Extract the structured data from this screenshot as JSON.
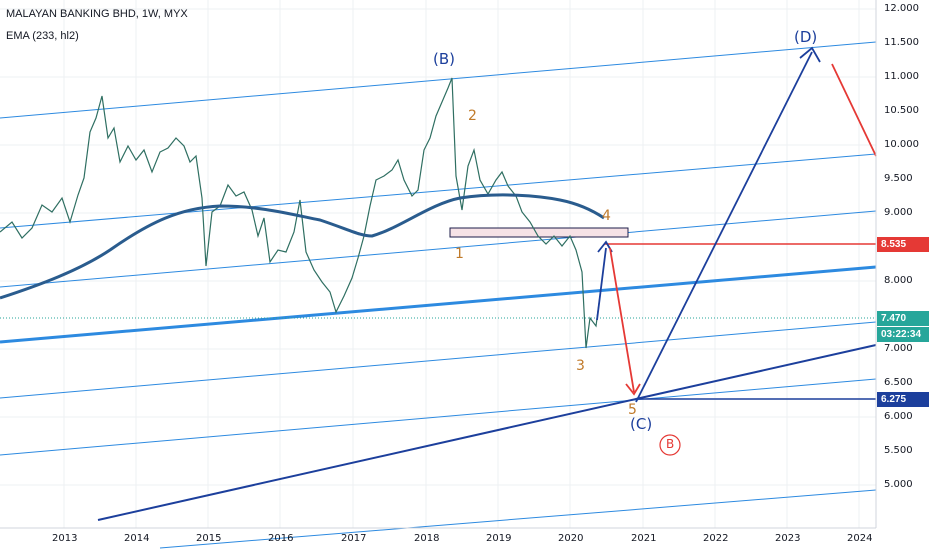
{
  "header": {
    "title": "MALAYAN BANKING BHD, 1W, MYX",
    "indicator": "EMA (233, hl2)"
  },
  "waves": {
    "B": "(B)",
    "one": "1",
    "two": "2",
    "three": "3",
    "four": "4",
    "five": "5",
    "C": "(C)",
    "circled_B": "B",
    "D": "(D)"
  },
  "price_tags": {
    "red": "8.535",
    "last": "7.470",
    "countdown": "03:22:34",
    "blue": "6.275"
  },
  "axes": {
    "y_ticks": [
      "12.000",
      "11.500",
      "11.000",
      "10.500",
      "10.000",
      "9.500",
      "9.000",
      "8.000",
      "7.000",
      "6.500",
      "6.000",
      "5.500",
      "5.000"
    ],
    "x_ticks": [
      "2013",
      "2014",
      "2015",
      "2016",
      "2017",
      "2018",
      "2019",
      "2020",
      "2021",
      "2022",
      "2023",
      "2024"
    ]
  },
  "colors": {
    "bull": "#26a69a",
    "bear": "#ef5350",
    "channel": "#2d8ae0",
    "trend_dark": "#1c3f9c",
    "projection_red": "#e53935",
    "wave_minor": "#c07a2a"
  },
  "chart_data": {
    "type": "line",
    "title": "MALAYAN BANKING BHD, 1W, MYX",
    "xlabel": "",
    "ylabel": "",
    "ylim": [
      4.5,
      12.0
    ],
    "grid": true,
    "series": [
      {
        "name": "EMA (233, hl2)",
        "x": [
          "2013",
          "2014",
          "2015",
          "2016",
          "2017",
          "2018",
          "2019",
          "2020"
        ],
        "values": [
          8.0,
          8.4,
          9.0,
          8.8,
          8.7,
          9.1,
          9.2,
          9.0
        ]
      }
    ],
    "levels": [
      8.535,
      7.47,
      6.275
    ],
    "annotations": [
      "(B)",
      "1",
      "2",
      "3",
      "4",
      "5",
      "(C)",
      "B",
      "(D)"
    ]
  }
}
